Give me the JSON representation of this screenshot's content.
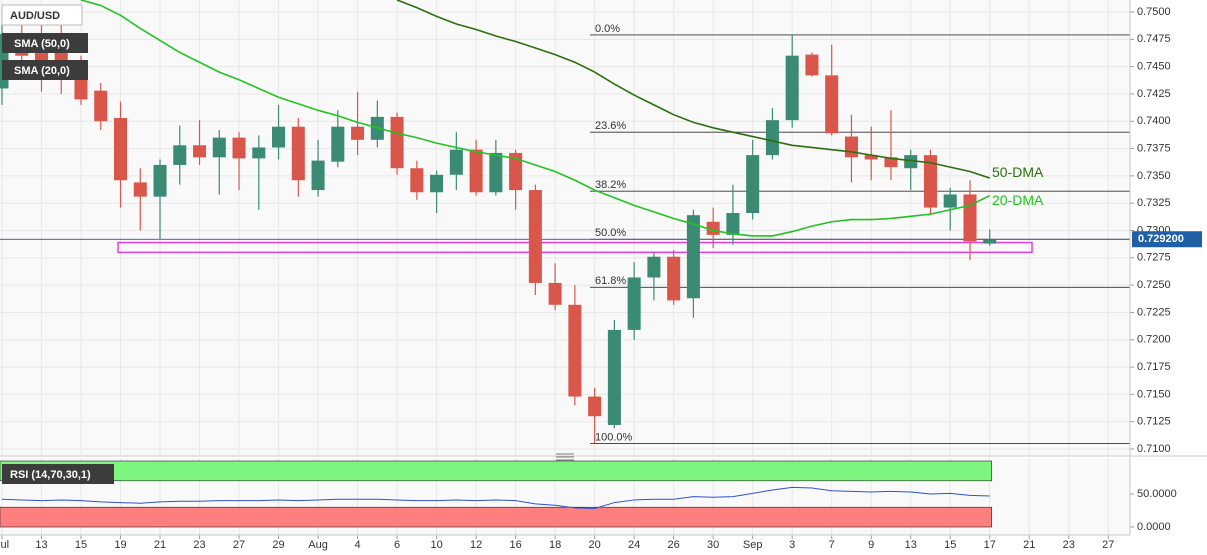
{
  "chart_data": [
    {
      "type": "candlestick",
      "title": "AUD/USD",
      "up_color": "#3a8a74",
      "down_color": "#d9574a",
      "open": [
        0.743,
        0.748,
        0.7478,
        0.747,
        0.7447,
        0.7428,
        0.7403,
        0.7344,
        0.7331,
        0.736,
        0.7378,
        0.7367,
        0.7385,
        0.7366,
        0.7376,
        0.7395,
        0.7337,
        0.7363,
        0.7395,
        0.7383,
        0.7404,
        0.7357,
        0.7335,
        0.7351,
        0.7374,
        0.7335,
        0.7371,
        0.7337,
        0.7252,
        0.7232,
        0.7148,
        0.7122,
        0.7209,
        0.7257,
        0.7276,
        0.7238,
        0.7308,
        0.7296,
        0.7316,
        0.7369,
        0.7401,
        0.7461,
        0.7442,
        0.7386,
        0.7369,
        0.7367,
        0.7357,
        0.7369,
        0.7321,
        0.7333,
        0.7288
      ],
      "high": [
        0.749,
        0.75,
        0.749,
        0.75,
        0.746,
        0.7435,
        0.7418,
        0.7357,
        0.7365,
        0.7396,
        0.7401,
        0.7392,
        0.739,
        0.7387,
        0.7415,
        0.7403,
        0.7383,
        0.741,
        0.7427,
        0.7419,
        0.7408,
        0.7364,
        0.7355,
        0.739,
        0.7383,
        0.7383,
        0.7374,
        0.7342,
        0.727,
        0.725,
        0.7156,
        0.7218,
        0.7271,
        0.728,
        0.7282,
        0.7319,
        0.7321,
        0.7342,
        0.7383,
        0.7412,
        0.7479,
        0.7463,
        0.747,
        0.7406,
        0.7395,
        0.741,
        0.7374,
        0.7374,
        0.7339,
        0.7346,
        0.7301
      ],
      "low": [
        0.7415,
        0.744,
        0.7427,
        0.7425,
        0.7415,
        0.7392,
        0.7321,
        0.73,
        0.7292,
        0.7342,
        0.736,
        0.7333,
        0.7337,
        0.7319,
        0.7365,
        0.7331,
        0.7331,
        0.7358,
        0.7369,
        0.7376,
        0.7351,
        0.7328,
        0.7316,
        0.7337,
        0.7332,
        0.7332,
        0.7319,
        0.7241,
        0.7227,
        0.714,
        0.7105,
        0.7119,
        0.72,
        0.7236,
        0.7232,
        0.722,
        0.7284,
        0.7287,
        0.731,
        0.7365,
        0.7394,
        0.7441,
        0.7387,
        0.7344,
        0.7346,
        0.7346,
        0.7337,
        0.7314,
        0.73,
        0.7273,
        0.7286
      ],
      "close": [
        0.748,
        0.746,
        0.7447,
        0.744,
        0.742,
        0.74,
        0.7346,
        0.7331,
        0.736,
        0.7378,
        0.7367,
        0.7385,
        0.7366,
        0.7376,
        0.7395,
        0.7346,
        0.7364,
        0.7395,
        0.7383,
        0.7404,
        0.7357,
        0.7335,
        0.7351,
        0.7374,
        0.7335,
        0.7371,
        0.7337,
        0.7252,
        0.7232,
        0.7148,
        0.713,
        0.7209,
        0.7257,
        0.7276,
        0.7236,
        0.7314,
        0.7296,
        0.7316,
        0.7369,
        0.7401,
        0.746,
        0.7442,
        0.7389,
        0.7367,
        0.7365,
        0.7358,
        0.7369,
        0.7321,
        0.7333,
        0.729,
        0.7292
      ],
      "series": [
        {
          "name": "SMA (50,0)",
          "label": "50-DMA",
          "color": "#2e6e0e",
          "values": [
            null,
            null,
            null,
            null,
            null,
            null,
            null,
            null,
            null,
            null,
            null,
            null,
            null,
            null,
            null,
            null,
            null,
            null,
            null,
            null,
            0.7511,
            0.7504,
            0.7496,
            0.7489,
            0.7484,
            0.7478,
            0.7473,
            0.7467,
            0.7461,
            0.7454,
            0.7445,
            0.7434,
            0.7424,
            0.7415,
            0.7406,
            0.7399,
            0.7394,
            0.739,
            0.7386,
            0.7382,
            0.7378,
            0.7376,
            0.7374,
            0.7372,
            0.7369,
            0.7366,
            0.7364,
            0.7362,
            0.7358,
            0.7354,
            0.7348
          ]
        },
        {
          "name": "SMA (20,0)",
          "label": "20-DMA",
          "color": "#22c322",
          "values": [
            null,
            null,
            null,
            null,
            0.7511,
            0.7506,
            0.7497,
            0.7485,
            0.7474,
            0.7463,
            0.7454,
            0.7445,
            0.7438,
            0.743,
            0.7422,
            0.7416,
            0.741,
            0.7405,
            0.7399,
            0.7394,
            0.7389,
            0.7385,
            0.738,
            0.7376,
            0.7372,
            0.7369,
            0.7366,
            0.736,
            0.7354,
            0.7346,
            0.7337,
            0.733,
            0.7323,
            0.7317,
            0.7311,
            0.7306,
            0.73,
            0.7297,
            0.7295,
            0.7295,
            0.7299,
            0.7304,
            0.7308,
            0.731,
            0.731,
            0.7311,
            0.7313,
            0.7315,
            0.7319,
            0.7323,
            0.7332
          ]
        }
      ],
      "levels": [
        {
          "label": "0.0%",
          "price": 0.7479
        },
        {
          "label": "23.6%",
          "price": 0.739
        },
        {
          "label": "38.2%",
          "price": 0.7336
        },
        {
          "label": "50.0%",
          "price": 0.7292
        },
        {
          "label": "61.8%",
          "price": 0.7248
        },
        {
          "label": "100.0%",
          "price": 0.7105
        }
      ],
      "zone": {
        "ylim": [
          0.728,
          0.7289
        ],
        "color": "#e040e0"
      },
      "last_price": {
        "value": 0.7292,
        "label": "0.729200",
        "color": "#1f5fa8"
      },
      "xlim": [
        -0.1,
        57.1
      ],
      "xticks": [
        {
          "value": 0,
          "label": "Jul"
        },
        {
          "value": 2,
          "label": "13"
        },
        {
          "value": 4,
          "label": "15"
        },
        {
          "value": 6,
          "label": "19"
        },
        {
          "value": 8,
          "label": "21"
        },
        {
          "value": 10,
          "label": "23"
        },
        {
          "value": 12,
          "label": "27"
        },
        {
          "value": 14,
          "label": "29"
        },
        {
          "value": 16,
          "label": "Aug"
        },
        {
          "value": 18,
          "label": "4"
        },
        {
          "value": 20,
          "label": "6"
        },
        {
          "value": 22,
          "label": "10"
        },
        {
          "value": 24,
          "label": "12"
        },
        {
          "value": 26,
          "label": "16"
        },
        {
          "value": 28,
          "label": "18"
        },
        {
          "value": 30,
          "label": "20"
        },
        {
          "value": 32,
          "label": "24"
        },
        {
          "value": 34,
          "label": "26"
        },
        {
          "value": 36,
          "label": "30"
        },
        {
          "value": 38,
          "label": "Sep"
        },
        {
          "value": 40,
          "label": "3"
        },
        {
          "value": 42,
          "label": "7"
        },
        {
          "value": 44,
          "label": "9"
        },
        {
          "value": 46,
          "label": "13"
        },
        {
          "value": 48,
          "label": "15"
        },
        {
          "value": 50,
          "label": "17"
        },
        {
          "value": 52,
          "label": "21"
        },
        {
          "value": 54,
          "label": "23"
        },
        {
          "value": 56,
          "label": "27"
        }
      ],
      "ylim": [
        0.709,
        0.7511
      ],
      "yticks": [
        {
          "value": 0.75,
          "label": "0.7500"
        },
        {
          "value": 0.7475,
          "label": "0.7475"
        },
        {
          "value": 0.745,
          "label": "0.7450"
        },
        {
          "value": 0.7425,
          "label": "0.7425"
        },
        {
          "value": 0.74,
          "label": "0.7400"
        },
        {
          "value": 0.7375,
          "label": "0.7375"
        },
        {
          "value": 0.735,
          "label": "0.7350"
        },
        {
          "value": 0.7325,
          "label": "0.7325"
        },
        {
          "value": 0.73,
          "label": "0.7300"
        },
        {
          "value": 0.7275,
          "label": "0.7275"
        },
        {
          "value": 0.725,
          "label": "0.7250"
        },
        {
          "value": 0.7225,
          "label": "0.7225"
        },
        {
          "value": 0.72,
          "label": "0.7200"
        },
        {
          "value": 0.7175,
          "label": "0.7175"
        },
        {
          "value": 0.715,
          "label": "0.7150"
        },
        {
          "value": 0.7125,
          "label": "0.7125"
        },
        {
          "value": 0.71,
          "label": "0.7100"
        }
      ],
      "grid": true
    },
    {
      "type": "line",
      "title": "RSI (14,70,30,1)",
      "color": "#3050d0",
      "values": [
        42,
        41,
        40,
        41,
        40,
        38,
        37,
        36,
        38,
        39,
        39,
        40,
        40,
        40,
        41,
        40,
        41,
        42,
        42,
        42,
        41,
        40,
        40,
        41,
        40,
        41,
        40,
        35,
        33,
        29,
        28,
        37,
        41,
        42,
        42,
        46,
        45,
        46,
        51,
        56,
        60,
        59,
        55,
        54,
        53,
        54,
        53,
        50,
        51,
        48,
        47
      ],
      "bands": [
        {
          "ylim": [
            70,
            100
          ],
          "color": "#7ef57e"
        },
        {
          "ylim": [
            0,
            30
          ],
          "color": "#ff7f7f"
        }
      ],
      "ylim": [
        0,
        100
      ],
      "yticks": [
        {
          "value": 50,
          "label": "50.0000"
        },
        {
          "value": 0,
          "label": "0.0000"
        }
      ]
    }
  ]
}
